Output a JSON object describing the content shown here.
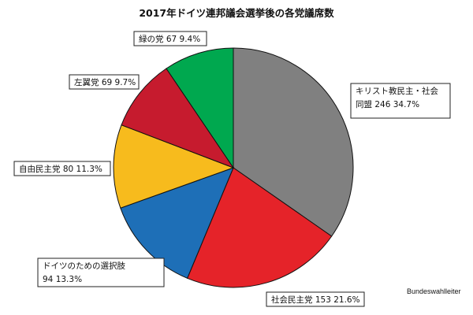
{
  "chart_data": {
    "type": "pie",
    "title": "2017年ドイツ連邦議会選挙後の各党議席数",
    "start_angle_deg": 0,
    "direction": "clockwise",
    "slices": [
      {
        "label": "キリスト教民主・社会同盟",
        "label_lines": [
          "キリスト教民主・社会",
          "同盟 246  34.7%"
        ],
        "value": 246,
        "percent": "34.7%",
        "color": "#808080"
      },
      {
        "label": "社会民主党",
        "label_lines": [
          "社会民主党 153  21.6%"
        ],
        "value": 153,
        "percent": "21.6%",
        "color": "#e52329"
      },
      {
        "label": "ドイツのための選択肢",
        "label_lines": [
          "ドイツのための選択肢",
          "94  13.3%"
        ],
        "value": 94,
        "percent": "13.3%",
        "color": "#1e6fb7"
      },
      {
        "label": "自由民主党",
        "label_lines": [
          "自由民主党 80  11.3%"
        ],
        "value": 80,
        "percent": "11.3%",
        "color": "#f7bb1d"
      },
      {
        "label": "左翼党",
        "label_lines": [
          "左翼党 69  9.7%"
        ],
        "value": 69,
        "percent": "9.7%",
        "color": "#c61b2e"
      },
      {
        "label": "緑の党",
        "label_lines": [
          "緑の党 67  9.4%"
        ],
        "value": 67,
        "percent": "9.4%",
        "color": "#00a84f"
      }
    ],
    "source": "Bundeswahlleiter"
  }
}
